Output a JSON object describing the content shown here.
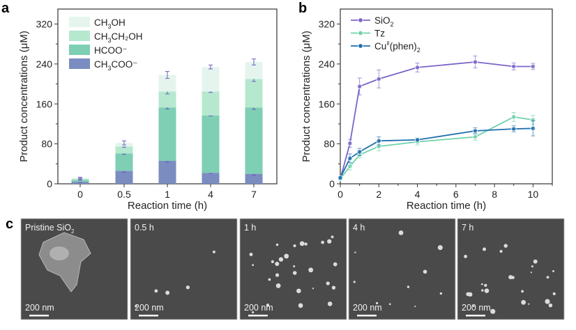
{
  "panel_labels": [
    "a",
    "b",
    "c"
  ],
  "chart_data": [
    {
      "type": "bar",
      "stacked": true,
      "title": "",
      "xlabel": "Reaction time (h)",
      "ylabel": "Product concentrations (μM)",
      "ylim": [
        0,
        350
      ],
      "yticks": [
        "0",
        "80",
        "160",
        "240",
        "320"
      ],
      "categories": [
        "0",
        "0.5",
        "1",
        "4",
        "7"
      ],
      "legend_position": "top-left",
      "series": [
        {
          "name": "CH3COO−",
          "label_main": "CH",
          "sub": "3",
          "label_rest": "COO⁻",
          "color": "#7a8cc0",
          "values": [
            4,
            26,
            46,
            22,
            20
          ],
          "errors": [
            1,
            3,
            3,
            1.5,
            3
          ]
        },
        {
          "name": "HCOO−",
          "label_main": "HCOO⁻",
          "sub": "",
          "label_rest": "",
          "color": "#7ecfb3",
          "values": [
            4,
            35,
            107,
            115,
            133
          ],
          "errors": [
            1,
            2,
            3,
            1,
            4
          ]
        },
        {
          "name": "CH3CH2OH",
          "label_main": "CH",
          "sub": "3",
          "label_rest": "CH₂OH",
          "color": "#b6e8cf",
          "values": [
            2,
            14,
            32,
            48,
            57
          ],
          "errors": [
            1,
            2,
            5,
            2,
            5
          ]
        },
        {
          "name": "CH3OH",
          "label_main": "CH",
          "sub": "3",
          "label_rest": "OH",
          "color": "#e5f5ee",
          "values": [
            2,
            7,
            33,
            49,
            34
          ],
          "errors": [
            1,
            4,
            7,
            4,
            6
          ]
        }
      ]
    },
    {
      "type": "line",
      "title": "",
      "xlabel": "Reaction time (h)",
      "ylabel": "Product concentrations (μM)",
      "xlim": [
        0,
        11
      ],
      "ylim": [
        0,
        350
      ],
      "xticks": [
        "0",
        "2",
        "4",
        "6",
        "8",
        "10"
      ],
      "yticks": [
        "0",
        "80",
        "160",
        "240",
        "320"
      ],
      "x": [
        0,
        0.5,
        1,
        2,
        4,
        7,
        9,
        10
      ],
      "legend_position": "top-left",
      "series": [
        {
          "name": "SiO2",
          "label_main": "SiO",
          "sub": "2",
          "sup": "",
          "label_rest": "",
          "color": "#7b64c8",
          "values": [
            10,
            81,
            195,
            210,
            233,
            244,
            235,
            235
          ],
          "errors": [
            3,
            8,
            17,
            18,
            9,
            12,
            7,
            6
          ]
        },
        {
          "name": "Tz",
          "label_main": "Tz",
          "sub": "",
          "sup": "",
          "label_rest": "",
          "color": "#6fd2a9",
          "values": [
            10,
            35,
            58,
            75,
            84,
            94,
            134,
            128
          ],
          "errors": [
            3,
            7,
            6,
            9,
            6,
            7,
            9,
            9
          ]
        },
        {
          "name": "CuII(phen)2",
          "label_main": "Cu",
          "sup": "II",
          "label_rest": "(phen)",
          "sub": "2",
          "color": "#1f6fae",
          "values": [
            12,
            51,
            64,
            86,
            88,
            106,
            110,
            111
          ],
          "errors": [
            3,
            9,
            7,
            8,
            4,
            6,
            6,
            15
          ]
        }
      ]
    }
  ],
  "sem_images": [
    {
      "label_main": "Pristine SiO",
      "sub": "2",
      "scale_bar": "200 nm"
    },
    {
      "label_main": "0.5 h",
      "sub": "",
      "scale_bar": "200 nm"
    },
    {
      "label_main": "1 h",
      "sub": "",
      "scale_bar": "200 nm"
    },
    {
      "label_main": "4 h",
      "sub": "",
      "scale_bar": "200 nm"
    },
    {
      "label_main": "7 h",
      "sub": "",
      "scale_bar": "200 nm"
    }
  ]
}
